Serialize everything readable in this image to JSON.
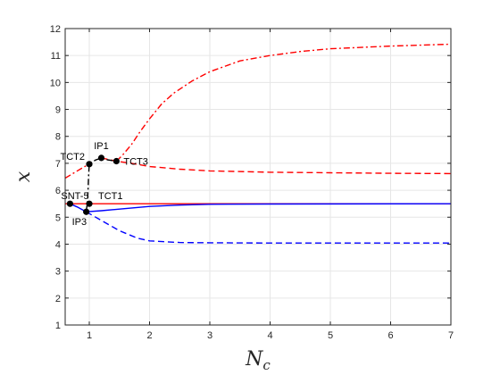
{
  "chart_data": {
    "type": "line",
    "title": "",
    "xlabel_base": "N",
    "xlabel_sub": "c",
    "ylabel": "x",
    "xlim": [
      0.6,
      7
    ],
    "ylim": [
      1,
      12
    ],
    "xticks": [
      1,
      2,
      3,
      4,
      5,
      6,
      7
    ],
    "yticks": [
      1,
      2,
      3,
      4,
      5,
      6,
      7,
      8,
      9,
      10,
      11,
      12
    ],
    "grid": true,
    "series": [
      {
        "color": "#ff0000",
        "style": "dashdot",
        "points": [
          [
            1.45,
            7.08
          ],
          [
            1.55,
            7.3
          ],
          [
            1.7,
            7.7
          ],
          [
            1.85,
            8.2
          ],
          [
            2.0,
            8.65
          ],
          [
            2.2,
            9.2
          ],
          [
            2.4,
            9.6
          ],
          [
            2.7,
            10.05
          ],
          [
            3.0,
            10.4
          ],
          [
            3.5,
            10.8
          ],
          [
            4.0,
            11.0
          ],
          [
            4.5,
            11.15
          ],
          [
            5.0,
            11.25
          ],
          [
            6.0,
            11.35
          ],
          [
            7.0,
            11.42
          ]
        ]
      },
      {
        "color": "#ff0000",
        "style": "dashed",
        "points": [
          [
            1.2,
            7.2
          ],
          [
            1.45,
            7.08
          ],
          [
            1.7,
            7.0
          ],
          [
            2.0,
            6.88
          ],
          [
            2.5,
            6.78
          ],
          [
            3.0,
            6.72
          ],
          [
            4.0,
            6.67
          ],
          [
            5.0,
            6.65
          ],
          [
            6.0,
            6.63
          ],
          [
            7.0,
            6.62
          ]
        ]
      },
      {
        "color": "#ff0000",
        "style": "dashdot",
        "points": [
          [
            0.6,
            6.45
          ],
          [
            0.75,
            6.65
          ],
          [
            0.9,
            6.85
          ],
          [
            1.0,
            6.97
          ]
        ]
      },
      {
        "color": "#000000",
        "style": "dashdot",
        "points": [
          [
            0.95,
            5.2
          ],
          [
            0.97,
            5.6
          ],
          [
            0.98,
            6.1
          ],
          [
            0.99,
            6.6
          ],
          [
            1.0,
            6.97
          ],
          [
            1.1,
            7.12
          ],
          [
            1.2,
            7.2
          ],
          [
            1.3,
            7.13
          ],
          [
            1.45,
            7.08
          ]
        ]
      },
      {
        "color": "#ff0000",
        "style": "solid",
        "points": [
          [
            0.6,
            5.5
          ],
          [
            7.0,
            5.5
          ]
        ]
      },
      {
        "color": "#0000ff",
        "style": "solid",
        "points": [
          [
            0.95,
            5.2
          ],
          [
            1.2,
            5.24
          ],
          [
            1.5,
            5.3
          ],
          [
            2.0,
            5.4
          ],
          [
            2.5,
            5.45
          ],
          [
            3.0,
            5.48
          ],
          [
            4.0,
            5.49
          ],
          [
            7.0,
            5.5
          ]
        ]
      },
      {
        "color": "#0000ff",
        "style": "solid",
        "points": [
          [
            0.68,
            5.5
          ],
          [
            0.8,
            5.38
          ],
          [
            0.95,
            5.2
          ]
        ]
      },
      {
        "color": "#0000ff",
        "style": "dashed",
        "points": [
          [
            0.95,
            5.2
          ],
          [
            1.2,
            4.88
          ],
          [
            1.5,
            4.5
          ],
          [
            1.8,
            4.22
          ],
          [
            2.0,
            4.12
          ],
          [
            2.5,
            4.06
          ],
          [
            3.0,
            4.05
          ],
          [
            4.0,
            4.04
          ],
          [
            5.0,
            4.04
          ],
          [
            7.0,
            4.04
          ]
        ]
      }
    ],
    "points": [
      {
        "label": "SNT-5",
        "x": 0.68,
        "y": 5.5,
        "anchor": "start",
        "dx": -10,
        "dy": -5
      },
      {
        "label": "TCT1",
        "x": 1.0,
        "y": 5.5,
        "anchor": "start",
        "dx": 10,
        "dy": -5
      },
      {
        "label": "IP3",
        "x": 0.95,
        "y": 5.2,
        "anchor": "start",
        "dx": -16,
        "dy": 15
      },
      {
        "label": "TCT2",
        "x": 1.0,
        "y": 6.97,
        "anchor": "end",
        "dx": -5,
        "dy": -5
      },
      {
        "label": "IP1",
        "x": 1.2,
        "y": 7.2,
        "anchor": "middle",
        "dx": 0,
        "dy": -10
      },
      {
        "label": "TCT3",
        "x": 1.45,
        "y": 7.08,
        "anchor": "start",
        "dx": 8,
        "dy": 4
      }
    ]
  }
}
